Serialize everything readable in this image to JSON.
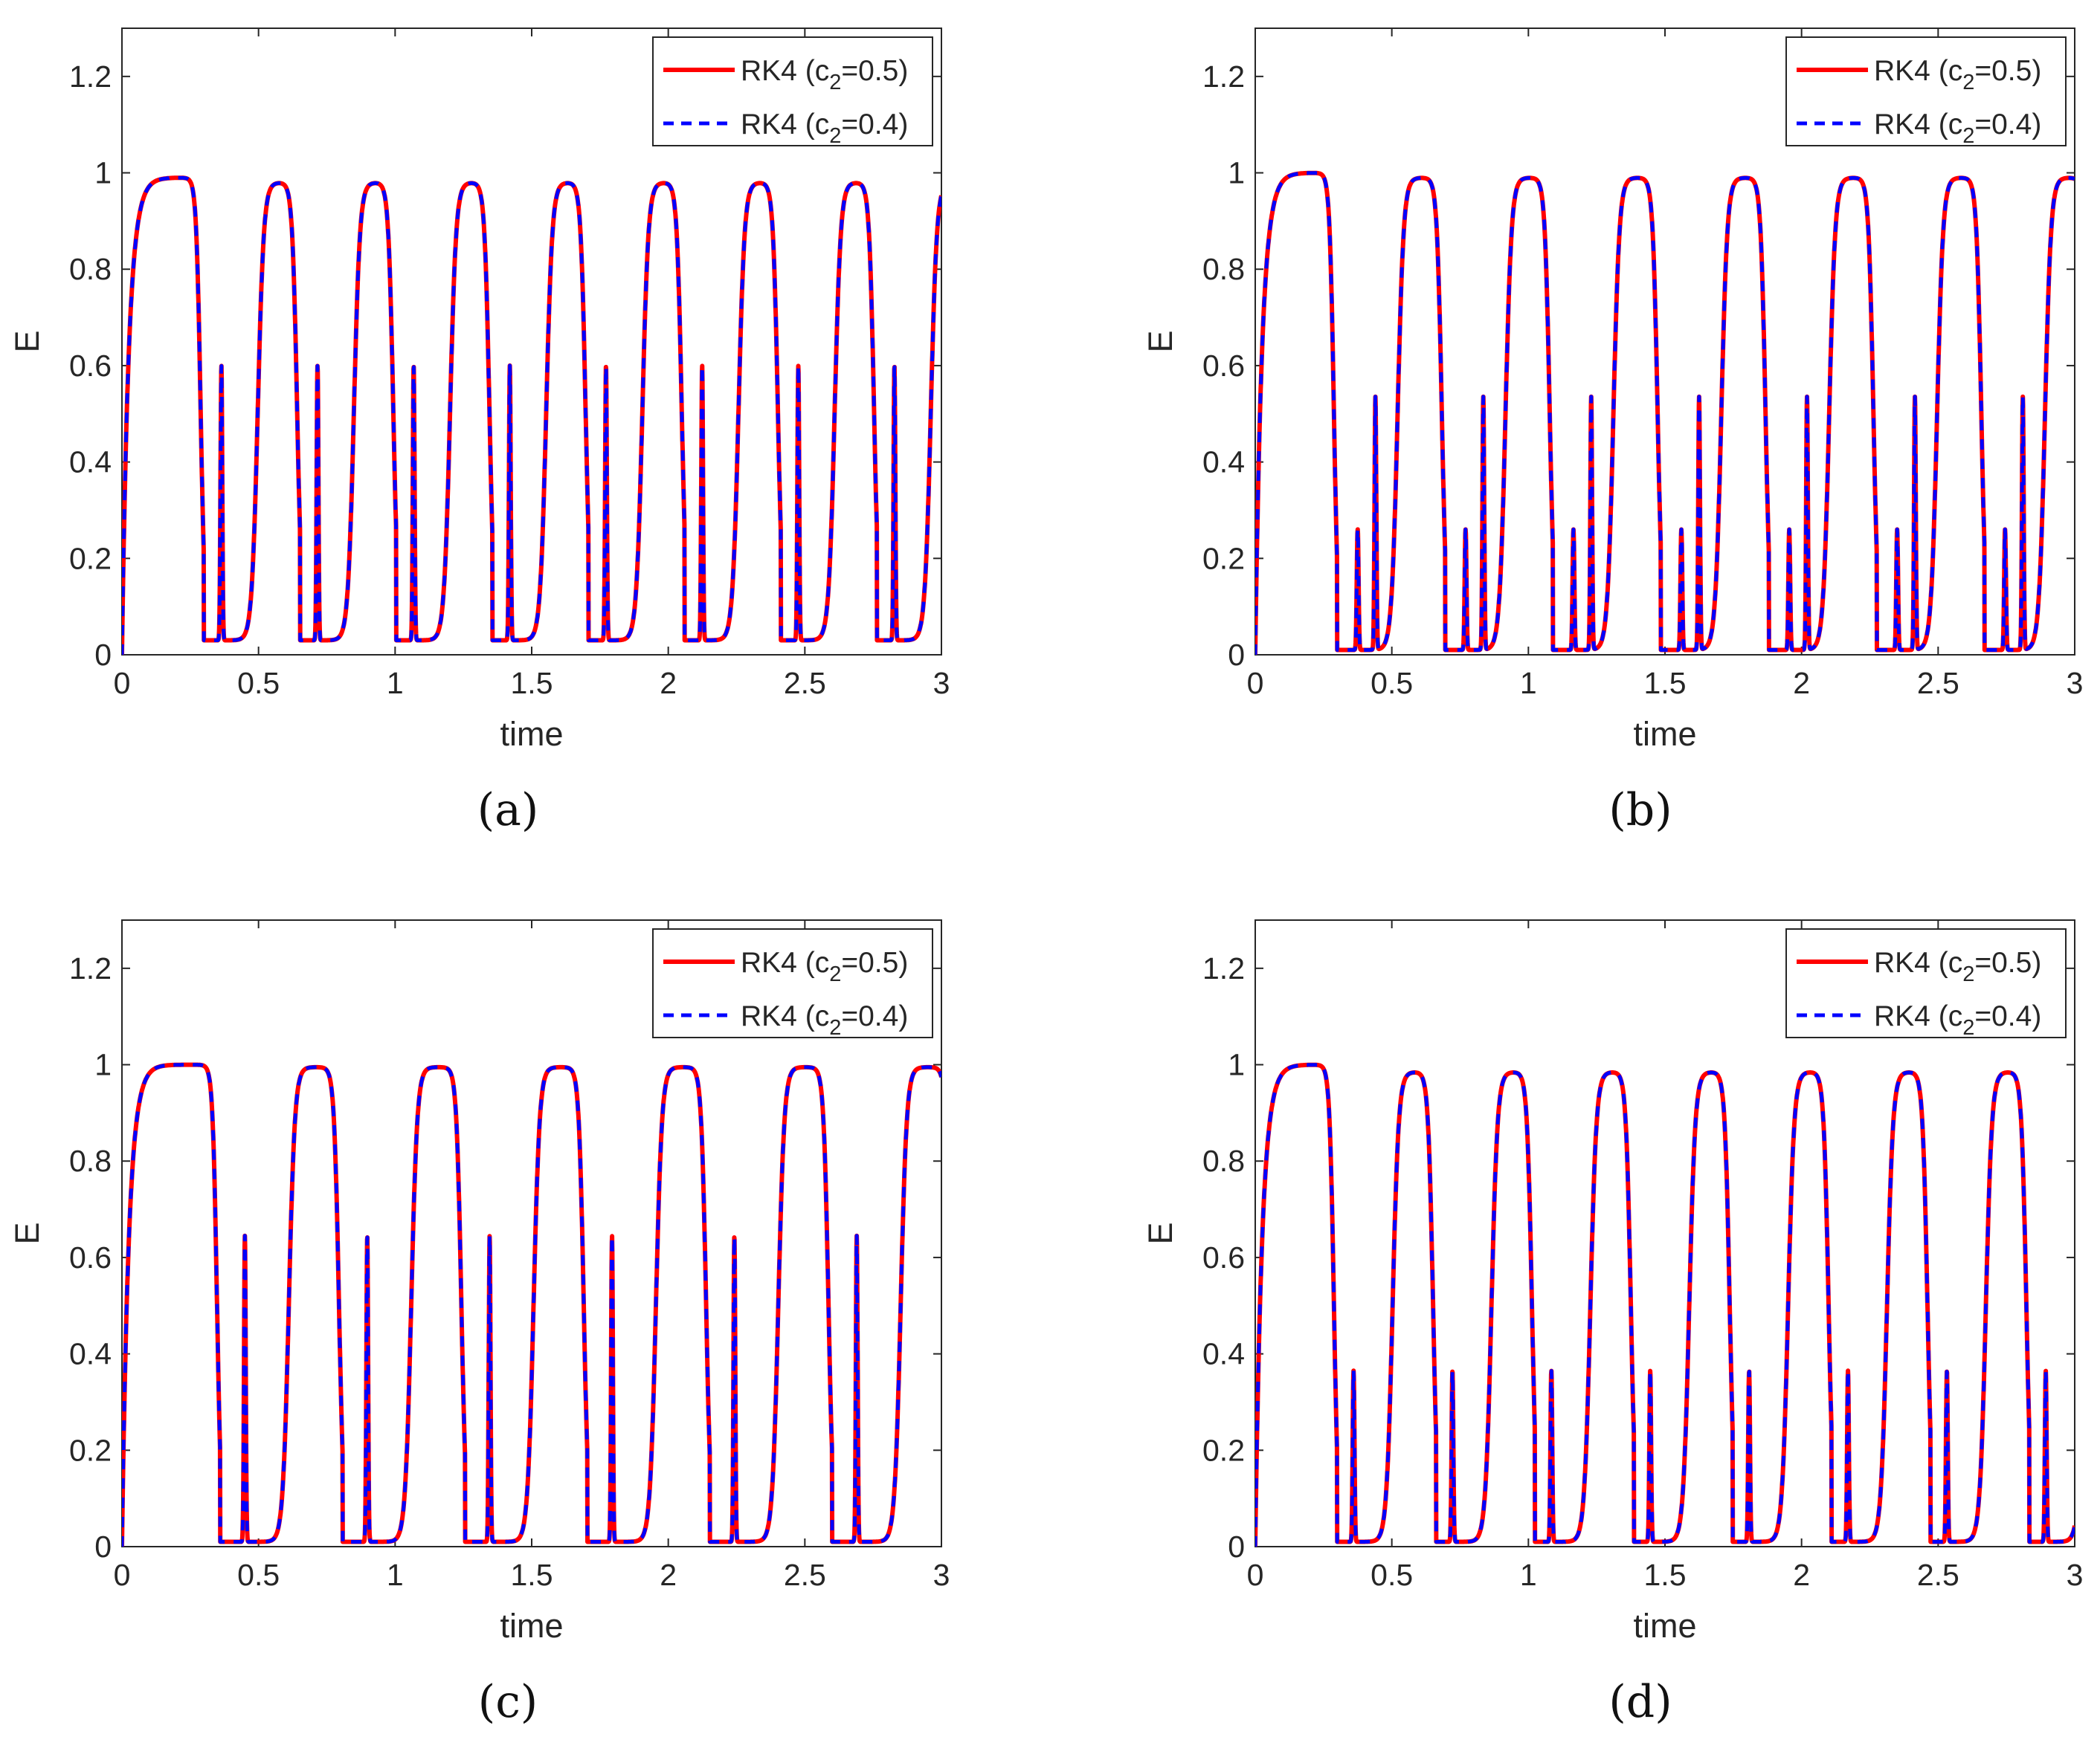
{
  "figure": {
    "captions": [
      "(a)",
      "(b)",
      "(c)",
      "(d)"
    ]
  },
  "chart_data": [
    {
      "panel": "a",
      "type": "line",
      "xlabel": "time",
      "ylabel": "E",
      "xlim": [
        0,
        3
      ],
      "ylim": [
        0,
        1.3
      ],
      "xticks": [
        0,
        0.5,
        1,
        1.5,
        2,
        2.5,
        3
      ],
      "yticks": [
        0,
        0.2,
        0.4,
        0.6,
        0.8,
        1,
        1.2
      ],
      "xtick_labels": [
        "0",
        "0.5",
        "1",
        "1.5",
        "2",
        "2.5",
        "3"
      ],
      "ytick_labels": [
        "0",
        "0.2",
        "0.4",
        "0.6",
        "0.8",
        "1",
        "1.2"
      ],
      "legend": {
        "position": "top-right",
        "entries": [
          {
            "name": "RK4 (c",
            "sub": "2",
            "tail": "=0.5)",
            "color": "#ff0000",
            "style": "solid"
          },
          {
            "name": "RK4 (c",
            "sub": "2",
            "tail": "=0.4)",
            "color": "#0000ff",
            "style": "dashed"
          }
        ]
      },
      "dynamics": {
        "first_peak": 0.99,
        "first_peak_time": 0.1,
        "first_drop": 0.3,
        "period": 0.352,
        "big_peak": 0.98,
        "big_min": 0.03,
        "spikes": [
          {
            "offset": 0.064,
            "height": 0.6,
            "min": 0.05
          }
        ],
        "spike_min": 0.05
      }
    },
    {
      "panel": "b",
      "type": "line",
      "xlabel": "time",
      "ylabel": "E",
      "xlim": [
        0,
        3
      ],
      "ylim": [
        0,
        1.3
      ],
      "xticks": [
        0,
        0.5,
        1,
        1.5,
        2,
        2.5,
        3
      ],
      "yticks": [
        0,
        0.2,
        0.4,
        0.6,
        0.8,
        1,
        1.2
      ],
      "xtick_labels": [
        "0",
        "0.5",
        "1",
        "1.5",
        "2",
        "2.5",
        "3"
      ],
      "ytick_labels": [
        "0",
        "0.2",
        "0.4",
        "0.6",
        "0.8",
        "1",
        "1.2"
      ],
      "legend": {
        "position": "top-right",
        "entries": [
          {
            "name": "RK4 (c",
            "sub": "2",
            "tail": "=0.5)",
            "color": "#ff0000",
            "style": "solid"
          },
          {
            "name": "RK4 (c",
            "sub": "2",
            "tail": "=0.4)",
            "color": "#0000ff",
            "style": "dashed"
          }
        ]
      },
      "dynamics": {
        "first_peak": 1.0,
        "first_peak_time": 0.1,
        "first_drop": 0.3,
        "period": 0.395,
        "big_peak": 0.99,
        "big_min": 0.01,
        "spikes": [
          {
            "offset": 0.075,
            "height": 0.26,
            "min": 0.02
          },
          {
            "offset": 0.14,
            "height": 0.535,
            "min": 0.02
          }
        ],
        "spike_min": 0.02
      }
    },
    {
      "panel": "c",
      "type": "line",
      "xlabel": "time",
      "ylabel": "E",
      "xlim": [
        0,
        3
      ],
      "ylim": [
        0,
        1.3
      ],
      "xticks": [
        0,
        0.5,
        1,
        1.5,
        2,
        2.5,
        3
      ],
      "yticks": [
        0,
        0.2,
        0.4,
        0.6,
        0.8,
        1,
        1.2
      ],
      "xtick_labels": [
        "0",
        "0.5",
        "1",
        "1.5",
        "2",
        "2.5",
        "3"
      ],
      "ytick_labels": [
        "0",
        "0.2",
        "0.4",
        "0.6",
        "0.8",
        "1",
        "1.2"
      ],
      "legend": {
        "position": "top-right",
        "entries": [
          {
            "name": "RK4 (c",
            "sub": "2",
            "tail": "=0.5)",
            "color": "#ff0000",
            "style": "solid"
          },
          {
            "name": "RK4 (c",
            "sub": "2",
            "tail": "=0.4)",
            "color": "#0000ff",
            "style": "dashed"
          }
        ]
      },
      "dynamics": {
        "first_peak": 1.0,
        "first_peak_time": 0.12,
        "first_drop": 0.36,
        "period": 0.448,
        "big_peak": 0.995,
        "big_min": 0.01,
        "spikes": [
          {
            "offset": 0.09,
            "height": 0.645,
            "min": 0.02
          }
        ],
        "spike_min": 0.02
      }
    },
    {
      "panel": "d",
      "type": "line",
      "xlabel": "time",
      "ylabel": "E",
      "xlim": [
        0,
        3
      ],
      "ylim": [
        0,
        1.3
      ],
      "xticks": [
        0,
        0.5,
        1,
        1.5,
        2,
        2.5,
        3
      ],
      "yticks": [
        0,
        0.2,
        0.4,
        0.6,
        0.8,
        1,
        1.2
      ],
      "xtick_labels": [
        "0",
        "0.5",
        "1",
        "1.5",
        "2",
        "2.5",
        "3"
      ],
      "ytick_labels": [
        "0",
        "0.2",
        "0.4",
        "0.6",
        "0.8",
        "1",
        "1.2"
      ],
      "legend": {
        "position": "top-right",
        "entries": [
          {
            "name": "RK4 (c",
            "sub": "2",
            "tail": "=0.5)",
            "color": "#ff0000",
            "style": "solid"
          },
          {
            "name": "RK4 (c",
            "sub": "2",
            "tail": "=0.4)",
            "color": "#0000ff",
            "style": "dashed"
          }
        ]
      },
      "dynamics": {
        "first_peak": 1.0,
        "first_peak_time": 0.1,
        "first_drop": 0.3,
        "period": 0.362,
        "big_peak": 0.985,
        "big_min": 0.01,
        "spikes": [
          {
            "offset": 0.06,
            "height": 0.365,
            "min": 0.02
          }
        ],
        "spike_min": 0.02
      }
    }
  ]
}
